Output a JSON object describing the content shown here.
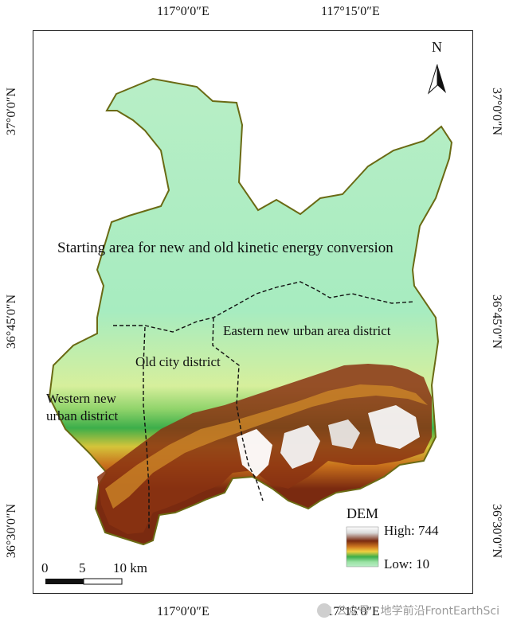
{
  "coords": {
    "top": [
      "117°0′0″E",
      "117°15′0″E"
    ],
    "bottom": [
      "117°0′0″E",
      "117°15′0″E"
    ],
    "left": [
      "37°0′0″N",
      "36°45′0″N",
      "36°30′0″N"
    ],
    "right": [
      "37°0′0″N",
      "36°45′0″N",
      "36°30′0″N"
    ]
  },
  "regions": {
    "starting_area": "Starting area for new and old kinetic energy conversion",
    "eastern": "Eastern new urban area district",
    "old_city": "Old city district",
    "western_line1": "Western new",
    "western_line2": "urban district"
  },
  "north_arrow": {
    "label": "N",
    "icon": "north-arrow-icon"
  },
  "legend": {
    "title": "DEM",
    "high": "High: 744",
    "low": "Low: 10",
    "colors": [
      "#ffffff",
      "#d9d9d9",
      "#7a2a10",
      "#a03a10",
      "#d07a20",
      "#f0d040",
      "#6cc06a",
      "#9be2a4",
      "#b8eec6"
    ]
  },
  "scale_bar": {
    "labels": [
      "0",
      "5",
      "10 km"
    ]
  },
  "watermark": "公众号 · 地学前沿FrontEarthSci",
  "colors": {
    "boundary": "#6a6a14",
    "lowland": "#a7ecc0",
    "mid": "#3cae4a",
    "high": "#7a2a10",
    "peak": "#ffffff"
  }
}
